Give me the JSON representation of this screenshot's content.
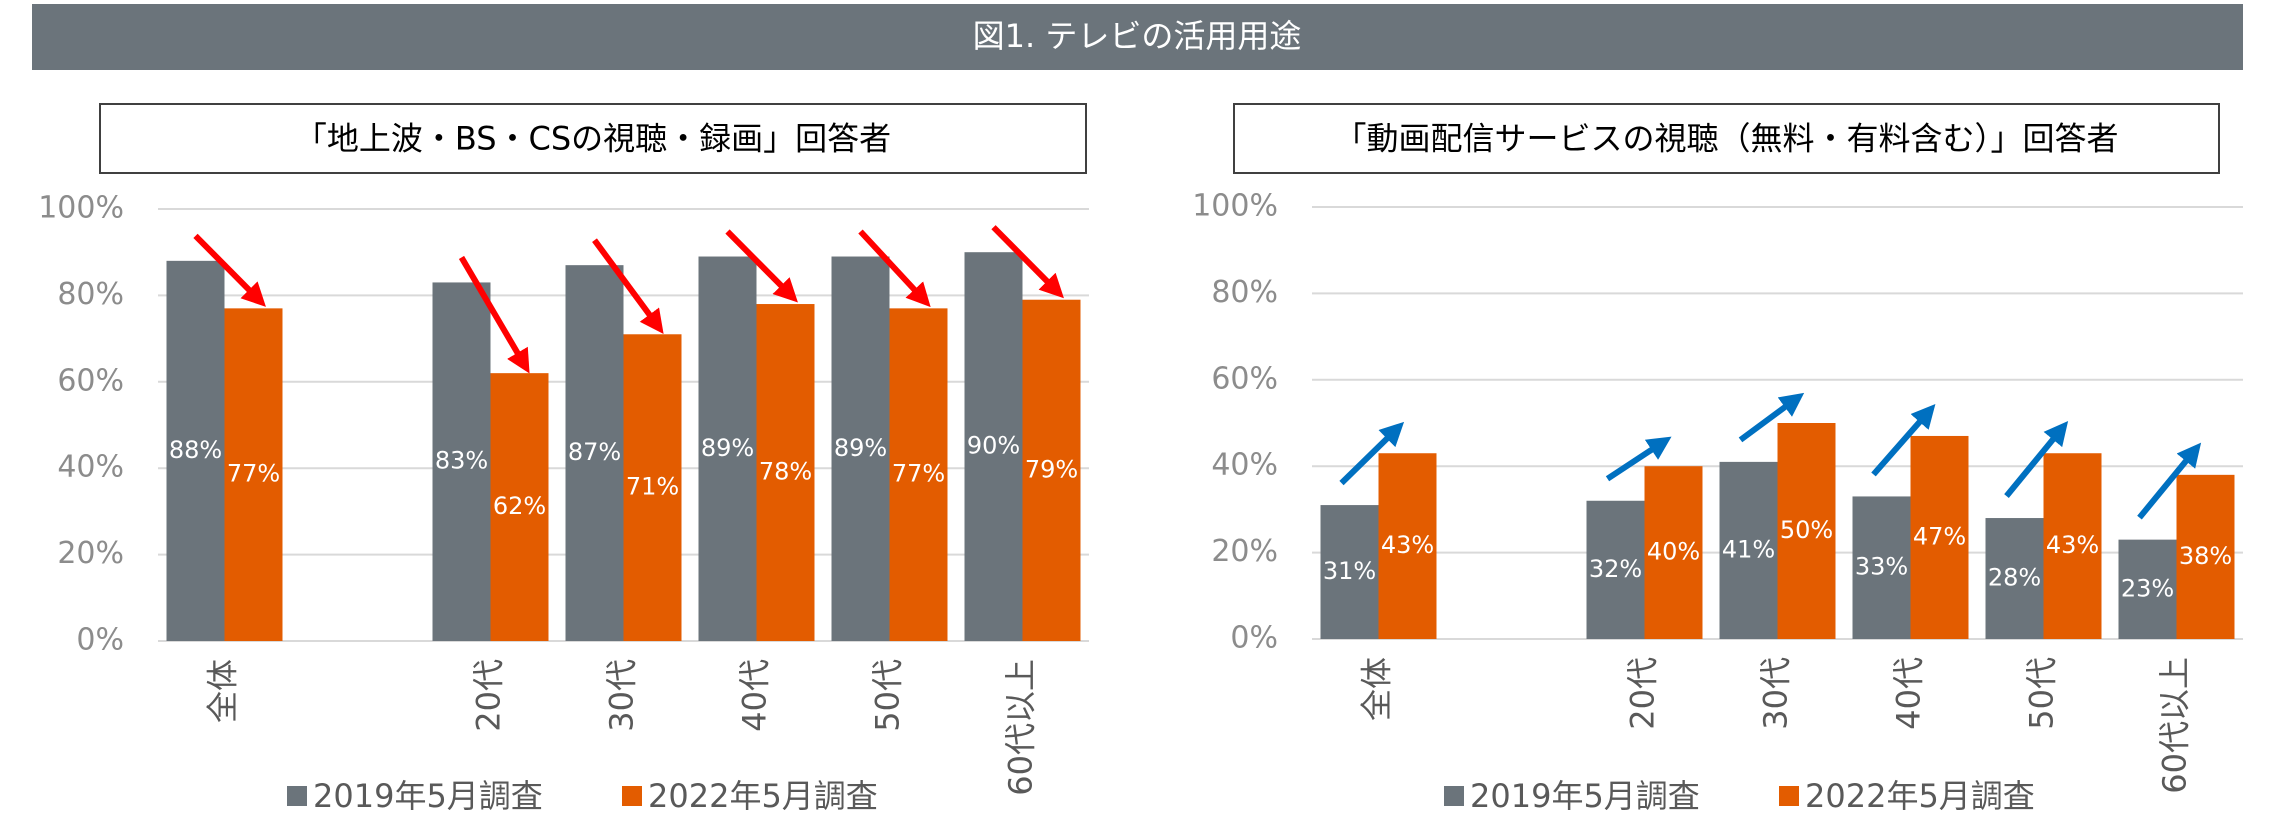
{
  "title": "図1. テレビの活用用途",
  "chart_data": [
    {
      "type": "bar",
      "title": "「地上波・BS・CSの視聴・録画」回答者",
      "categories": [
        "全体",
        null,
        "20代",
        "30代",
        "40代",
        "50代",
        "60代以上"
      ],
      "series": [
        {
          "name": "2019年5月調査",
          "color": "#6b747b",
          "values": [
            88,
            null,
            83,
            87,
            89,
            89,
            90
          ],
          "value_labels": [
            "88%",
            null,
            "83%",
            "87%",
            "89%",
            "89%",
            "90%"
          ]
        },
        {
          "name": "2022年5月調査",
          "color": "#e35c00",
          "values": [
            77,
            null,
            62,
            71,
            78,
            77,
            79
          ],
          "value_labels": [
            "77%",
            null,
            "62%",
            "71%",
            "78%",
            "77%",
            "79%"
          ]
        }
      ],
      "ylim": [
        0,
        100
      ],
      "yticks": [
        {
          "value": 0,
          "label": "0%"
        },
        {
          "value": 20,
          "label": "20%"
        },
        {
          "value": 40,
          "label": "40%"
        },
        {
          "value": 60,
          "label": "60%"
        },
        {
          "value": 80,
          "label": "80%"
        },
        {
          "value": 100,
          "label": "100%"
        }
      ],
      "grid": true,
      "legend": "bottom"
    },
    {
      "type": "bar",
      "title": "「動画配信サービスの視聴（無料・有料含む）」回答者",
      "categories": [
        "全体",
        null,
        "20代",
        "30代",
        "40代",
        "50代",
        "60代以上"
      ],
      "series": [
        {
          "name": "2019年5月調査",
          "color": "#6b747b",
          "values": [
            31,
            null,
            32,
            41,
            33,
            28,
            23
          ],
          "value_labels": [
            "31%",
            null,
            "32%",
            "41%",
            "33%",
            "28%",
            "23%"
          ]
        },
        {
          "name": "2022年5月調査",
          "color": "#e35c00",
          "values": [
            43,
            null,
            40,
            50,
            47,
            43,
            38
          ],
          "value_labels": [
            "43%",
            null,
            "40%",
            "50%",
            "47%",
            "43%",
            "38%"
          ]
        }
      ],
      "ylim": [
        0,
        100
      ],
      "yticks": [
        {
          "value": 0,
          "label": "0%"
        },
        {
          "value": 20,
          "label": "20%"
        },
        {
          "value": 40,
          "label": "40%"
        },
        {
          "value": 60,
          "label": "60%"
        },
        {
          "value": 80,
          "label": "80%"
        },
        {
          "value": 100,
          "label": "100%"
        }
      ],
      "grid": true,
      "legend": "bottom"
    }
  ]
}
